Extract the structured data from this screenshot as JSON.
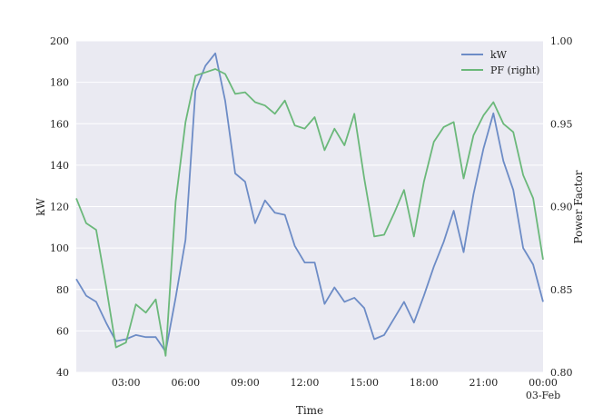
{
  "chart_data": {
    "type": "line",
    "title": "",
    "xlabel": "Time",
    "ylabel_left": "kW",
    "ylabel_right": "Power Factor",
    "ylim_left": [
      40,
      200
    ],
    "ylim_right": [
      0.8,
      1.0
    ],
    "yticks_left": [
      "40",
      "60",
      "80",
      "100",
      "120",
      "140",
      "160",
      "180",
      "200"
    ],
    "yticks_right": [
      "0.80",
      "0.85",
      "0.90",
      "0.95",
      "1.00"
    ],
    "xlim_hours": [
      0.5,
      24.0
    ],
    "xticks": [
      {
        "hour": 3,
        "label": "03:00",
        "sublabel": ""
      },
      {
        "hour": 6,
        "label": "06:00",
        "sublabel": ""
      },
      {
        "hour": 9,
        "label": "09:00",
        "sublabel": ""
      },
      {
        "hour": 12,
        "label": "12:00",
        "sublabel": ""
      },
      {
        "hour": 15,
        "label": "15:00",
        "sublabel": ""
      },
      {
        "hour": 18,
        "label": "18:00",
        "sublabel": ""
      },
      {
        "hour": 21,
        "label": "21:00",
        "sublabel": ""
      },
      {
        "hour": 24,
        "label": "00:00",
        "sublabel": "03-Feb"
      }
    ],
    "grid": true,
    "legend_position": "top-right",
    "x_hours": [
      0.5,
      1.0,
      1.5,
      2.0,
      2.5,
      3.0,
      3.5,
      4.0,
      4.5,
      5.0,
      5.5,
      6.0,
      6.5,
      7.0,
      7.5,
      8.0,
      8.5,
      9.0,
      9.5,
      10.0,
      10.5,
      11.0,
      11.5,
      12.0,
      12.5,
      13.0,
      13.5,
      14.0,
      14.5,
      15.0,
      15.5,
      16.0,
      16.5,
      17.0,
      17.5,
      18.0,
      18.5,
      19.0,
      19.5,
      20.0,
      20.5,
      21.0,
      21.5,
      22.0,
      22.5,
      23.0,
      23.5,
      24.0
    ],
    "series": [
      {
        "name": "kW",
        "axis": "left",
        "color": "#6d8cc6",
        "values": [
          85,
          77,
          74,
          64,
          55,
          56,
          58,
          57,
          57,
          50,
          76,
          104,
          176,
          188,
          194,
          171,
          136,
          132,
          112,
          123,
          117,
          116,
          101,
          93,
          93,
          73,
          81,
          74,
          76,
          71,
          56,
          58,
          66,
          74,
          64,
          77,
          91,
          103,
          118,
          98,
          126,
          148,
          165,
          142,
          128,
          100,
          92,
          74
        ]
      },
      {
        "name": "PF (right)",
        "axis": "right",
        "color": "#6bb87a",
        "values": [
          0.905,
          0.89,
          0.886,
          0.852,
          0.815,
          0.818,
          0.841,
          0.836,
          0.844,
          0.81,
          0.903,
          0.951,
          0.979,
          0.981,
          0.983,
          0.98,
          0.968,
          0.969,
          0.963,
          0.961,
          0.956,
          0.964,
          0.949,
          0.947,
          0.954,
          0.934,
          0.947,
          0.937,
          0.956,
          0.917,
          0.882,
          0.883,
          0.896,
          0.91,
          0.882,
          0.915,
          0.939,
          0.948,
          0.951,
          0.917,
          0.943,
          0.955,
          0.963,
          0.95,
          0.945,
          0.919,
          0.905,
          0.868
        ]
      }
    ]
  }
}
